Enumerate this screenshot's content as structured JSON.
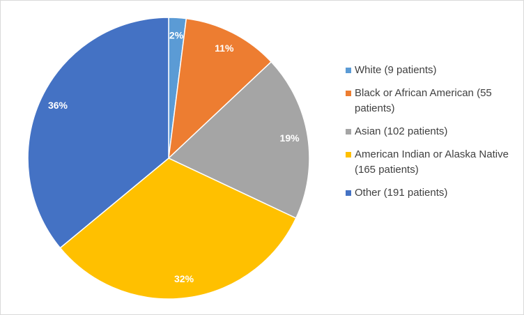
{
  "chart_data": {
    "type": "pie",
    "categories": [
      "White (9 patients)",
      "Black or African American (55 patients)",
      "Asian (102 patients)",
      "American Indian or Alaska Native (165 patients)",
      "Other (191 patients)"
    ],
    "values": [
      2,
      11,
      19,
      32,
      36
    ],
    "value_labels": [
      "2%",
      "11%",
      "19%",
      "32%",
      "36%"
    ],
    "colors": [
      "#5b9bd5",
      "#ed7d31",
      "#a5a5a5",
      "#ffc000",
      "#4472c4"
    ],
    "legend": "right"
  }
}
